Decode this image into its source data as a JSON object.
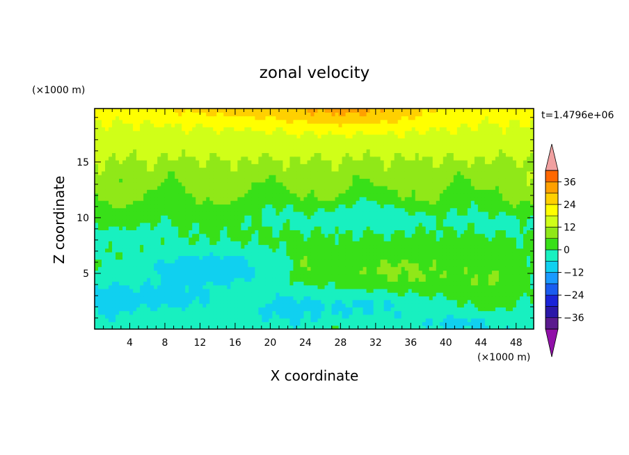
{
  "chart_data": {
    "type": "heatmap",
    "title": "zonal velocity",
    "xlabel": "X coordinate",
    "ylabel": "Z coordinate",
    "x_unit": "(×1000 m)",
    "y_unit": "(×1000 m)",
    "time_label": "t=1.4796e+06",
    "xlim": [
      0,
      50
    ],
    "ylim": [
      0,
      19.8
    ],
    "x_ticks": [
      4,
      8,
      12,
      16,
      20,
      24,
      28,
      32,
      36,
      40,
      44,
      48
    ],
    "y_ticks": [
      5,
      10,
      15
    ],
    "colorbar": {
      "tick_labels": [
        "36",
        "24",
        "12",
        "0",
        "−12",
        "−24",
        "−36"
      ],
      "tick_values": [
        36,
        24,
        12,
        0,
        -12,
        -24,
        -36
      ],
      "levels": [
        -42,
        -36,
        -30,
        -24,
        -18,
        -12,
        -6,
        0,
        6,
        12,
        18,
        24,
        30,
        36,
        42
      ],
      "colors": [
        "#5a1a8e",
        "#2a18a8",
        "#1a24d8",
        "#1a5cf0",
        "#1a9aff",
        "#10d0f0",
        "#18f0c0",
        "#38e018",
        "#90e818",
        "#d0ff18",
        "#ffff00",
        "#ffd000",
        "#ffa000",
        "#ff6800",
        "#ff2a10"
      ],
      "under_color": "#9010a8",
      "over_color": "#f0a0a0"
    }
  }
}
